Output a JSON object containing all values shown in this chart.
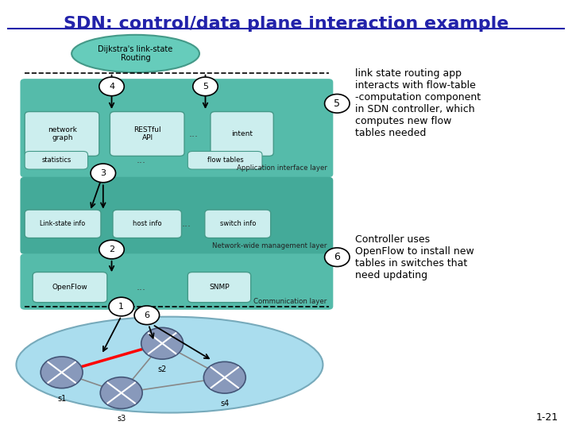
{
  "title": "SDN: control/data plane interaction example",
  "title_color": "#2222aa",
  "bg_color": "#ffffff",
  "app_layer_label": "Application interface layer",
  "mgmt_layer_label": "Network-wide management layer",
  "comm_layer_label": "Communication layer",
  "item5_text": "link state routing app\ninteracts with flow-table\n-computation component\nin SDN controller, which\ncomputes new flow\ntables needed",
  "item6_text": "Controller uses\nOpenFlow to install new\ntables in switches that\nneed updating",
  "page_num": "1-21"
}
